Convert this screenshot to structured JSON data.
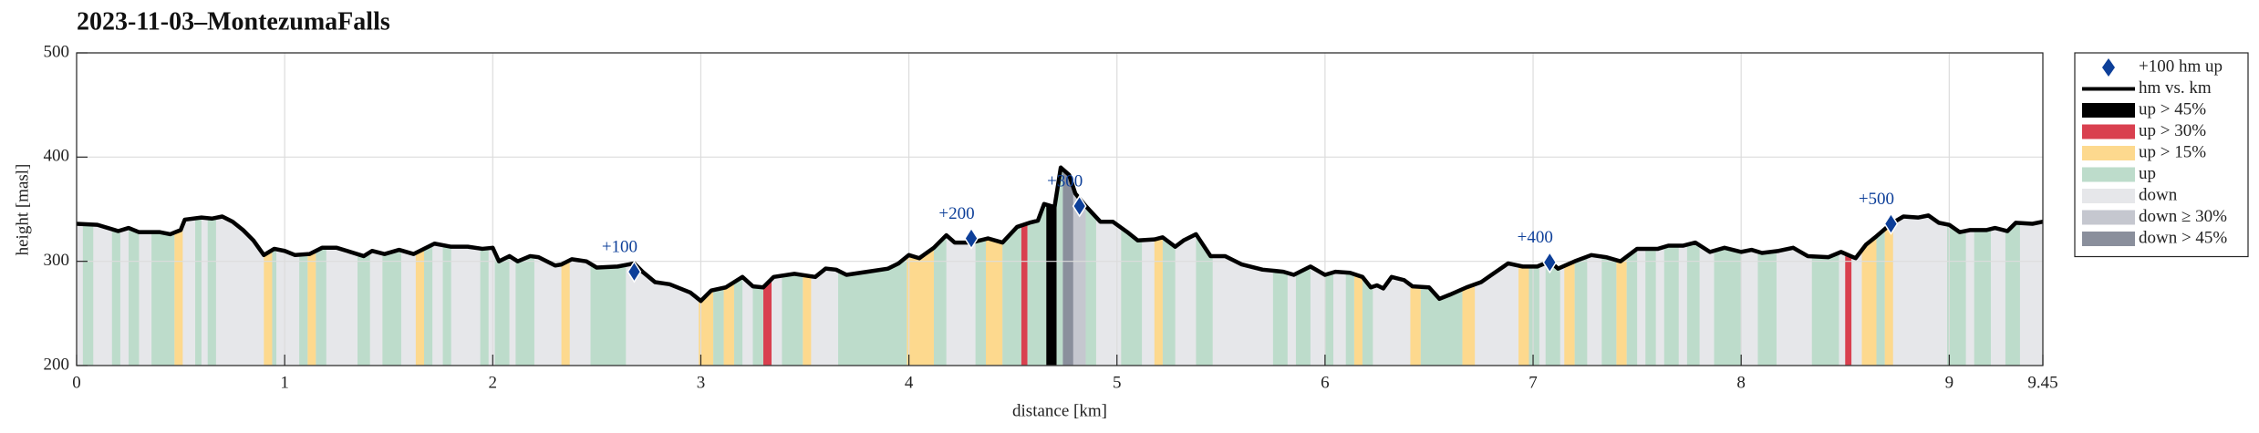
{
  "chart_data": {
    "type": "line",
    "title": "2023-11-03–MontezumaFalls",
    "xlabel": "distance [km]",
    "ylabel": "height [masl]",
    "xlim": [
      0,
      9.45
    ],
    "xticks": [
      0,
      1,
      2,
      3,
      4,
      5,
      6,
      7,
      8,
      9,
      9.45
    ],
    "ylim": [
      200,
      500
    ],
    "yticks": [
      200,
      300,
      400,
      500
    ],
    "grid": true,
    "legend": "outside right",
    "x": [
      0,
      0.1,
      0.2,
      0.25,
      0.3,
      0.4,
      0.45,
      0.5,
      0.52,
      0.6,
      0.65,
      0.7,
      0.75,
      0.8,
      0.85,
      0.9,
      0.95,
      1.0,
      1.05,
      1.12,
      1.18,
      1.25,
      1.3,
      1.38,
      1.42,
      1.48,
      1.55,
      1.62,
      1.72,
      1.8,
      1.88,
      1.95,
      2.0,
      2.03,
      2.08,
      2.12,
      2.18,
      2.22,
      2.3,
      2.33,
      2.38,
      2.45,
      2.5,
      2.6,
      2.68,
      2.72,
      2.78,
      2.85,
      2.95,
      3.0,
      3.05,
      3.12,
      3.2,
      3.25,
      3.3,
      3.35,
      3.45,
      3.55,
      3.6,
      3.65,
      3.7,
      3.8,
      3.9,
      3.95,
      4.0,
      4.05,
      4.12,
      4.18,
      4.22,
      4.3,
      4.38,
      4.45,
      4.52,
      4.58,
      4.62,
      4.65,
      4.7,
      4.73,
      4.77,
      4.8,
      4.85,
      4.92,
      4.98,
      5.05,
      5.1,
      5.18,
      5.22,
      5.28,
      5.32,
      5.38,
      5.45,
      5.52,
      5.6,
      5.7,
      5.8,
      5.85,
      5.93,
      6.0,
      6.05,
      6.12,
      6.18,
      6.22,
      6.25,
      6.28,
      6.32,
      6.38,
      6.42,
      6.5,
      6.55,
      6.6,
      6.68,
      6.75,
      6.8,
      6.88,
      6.95,
      7.02,
      7.08,
      7.12,
      7.2,
      7.28,
      7.35,
      7.42,
      7.5,
      7.6,
      7.65,
      7.72,
      7.78,
      7.85,
      7.92,
      8.0,
      8.05,
      8.1,
      8.18,
      8.25,
      8.32,
      8.42,
      8.48,
      8.55,
      8.6,
      8.65,
      8.72,
      8.78,
      8.85,
      8.9,
      8.95,
      9.0,
      9.05,
      9.1,
      9.18,
      9.22,
      9.28,
      9.32,
      9.4,
      9.45
    ],
    "series": [
      {
        "name": "hm vs. km",
        "color": "#000000",
        "values": [
          336,
          335,
          329,
          332,
          328,
          328,
          326,
          330,
          340,
          342,
          341,
          343,
          338,
          330,
          320,
          306,
          312,
          310,
          306,
          307,
          313,
          313,
          310,
          305,
          310,
          307,
          311,
          307,
          317,
          314,
          314,
          312,
          313,
          300,
          305,
          300,
          305,
          304,
          296,
          297,
          302,
          300,
          294,
          295,
          298,
          290,
          280,
          278,
          270,
          262,
          272,
          275,
          285,
          276,
          275,
          285,
          288,
          285,
          293,
          292,
          287,
          290,
          293,
          298,
          306,
          303,
          313,
          325,
          318,
          318,
          322,
          318,
          333,
          337,
          339,
          355,
          352,
          390,
          383,
          365,
          353,
          338,
          338,
          328,
          320,
          321,
          323,
          314,
          320,
          326,
          305,
          305,
          297,
          292,
          290,
          287,
          295,
          287,
          290,
          289,
          285,
          275,
          277,
          274,
          285,
          282,
          276,
          275,
          264,
          268,
          275,
          280,
          287,
          298,
          295,
          295,
          300,
          293,
          300,
          306,
          304,
          300,
          312,
          312,
          315,
          315,
          318,
          309,
          313,
          309,
          311,
          308,
          310,
          313,
          305,
          304,
          309,
          303,
          316,
          324,
          336,
          343,
          342,
          344,
          337,
          335,
          328,
          330,
          330,
          332,
          329,
          337,
          336,
          338
        ]
      }
    ],
    "markers": {
      "name": "+100 hm up",
      "color": "#0d3f99",
      "x": [
        2.68,
        4.3,
        4.82,
        7.08,
        8.72
      ],
      "values": [
        290,
        322,
        353,
        299,
        336
      ],
      "labels": [
        "+100",
        "+200",
        "+300",
        "+400",
        "+500"
      ]
    },
    "classes": [
      {
        "name": "up > 45%",
        "color": "#000000",
        "starts": [
          4.66
        ],
        "ends": [
          4.71
        ]
      },
      {
        "name": "up > 30%",
        "color": "#d9404f",
        "starts": [
          3.3,
          4.54,
          8.5
        ],
        "ends": [
          3.34,
          4.57,
          8.53
        ]
      },
      {
        "name": "up > 15%",
        "color": "#fdd98e",
        "starts": [
          0.47,
          0.9,
          1.11,
          1.63,
          2.33,
          2.99,
          3.11,
          3.49,
          3.99,
          4.37,
          5.18,
          6.14,
          6.41,
          6.66,
          6.93,
          7.15,
          7.4,
          8.58,
          8.69
        ],
        "ends": [
          0.51,
          0.94,
          1.15,
          1.67,
          2.37,
          3.06,
          3.16,
          3.53,
          4.12,
          4.45,
          5.22,
          6.18,
          6.46,
          6.72,
          6.98,
          7.2,
          7.45,
          8.65,
          8.73
        ]
      },
      {
        "name": "up",
        "color": "#bddccb",
        "starts": [
          0.03,
          0.17,
          0.25,
          0.36,
          0.57,
          0.63,
          0.94,
          1.07,
          1.15,
          1.35,
          1.47,
          1.67,
          1.76,
          1.94,
          2.01,
          2.11,
          2.47,
          3.06,
          3.16,
          3.25,
          3.39,
          3.66,
          4.12,
          4.32,
          4.45,
          4.57,
          4.71,
          4.85,
          5.02,
          5.22,
          5.38,
          5.75,
          5.86,
          6.0,
          6.1,
          6.18,
          6.46,
          6.98,
          7.06,
          7.2,
          7.33,
          7.45,
          7.54,
          7.63,
          7.74,
          7.87,
          8.08,
          8.34,
          8.65,
          8.99,
          9.12,
          9.27
        ],
        "ends": [
          0.08,
          0.21,
          0.3,
          0.47,
          0.6,
          0.67,
          0.96,
          1.11,
          1.2,
          1.41,
          1.56,
          1.71,
          1.8,
          1.98,
          2.08,
          2.2,
          2.64,
          3.11,
          3.2,
          3.3,
          3.49,
          3.99,
          4.18,
          4.37,
          4.54,
          4.66,
          4.74,
          4.9,
          5.12,
          5.28,
          5.46,
          5.82,
          5.93,
          6.04,
          6.14,
          6.23,
          6.66,
          7.03,
          7.13,
          7.26,
          7.4,
          7.5,
          7.59,
          7.7,
          7.8,
          8.0,
          8.17,
          8.47,
          8.69,
          9.08,
          9.2,
          9.34
        ]
      },
      {
        "name": "down",
        "color": "#e6e7ea",
        "starts": [],
        "ends": []
      },
      {
        "name": "down ≥ 30%",
        "color": "#c5c7cf",
        "starts": [
          4.79
        ],
        "ends": [
          4.85
        ]
      },
      {
        "name": "down > 45%",
        "color": "#8a8f9c",
        "starts": [
          4.74
        ],
        "ends": [
          4.79
        ]
      }
    ]
  }
}
